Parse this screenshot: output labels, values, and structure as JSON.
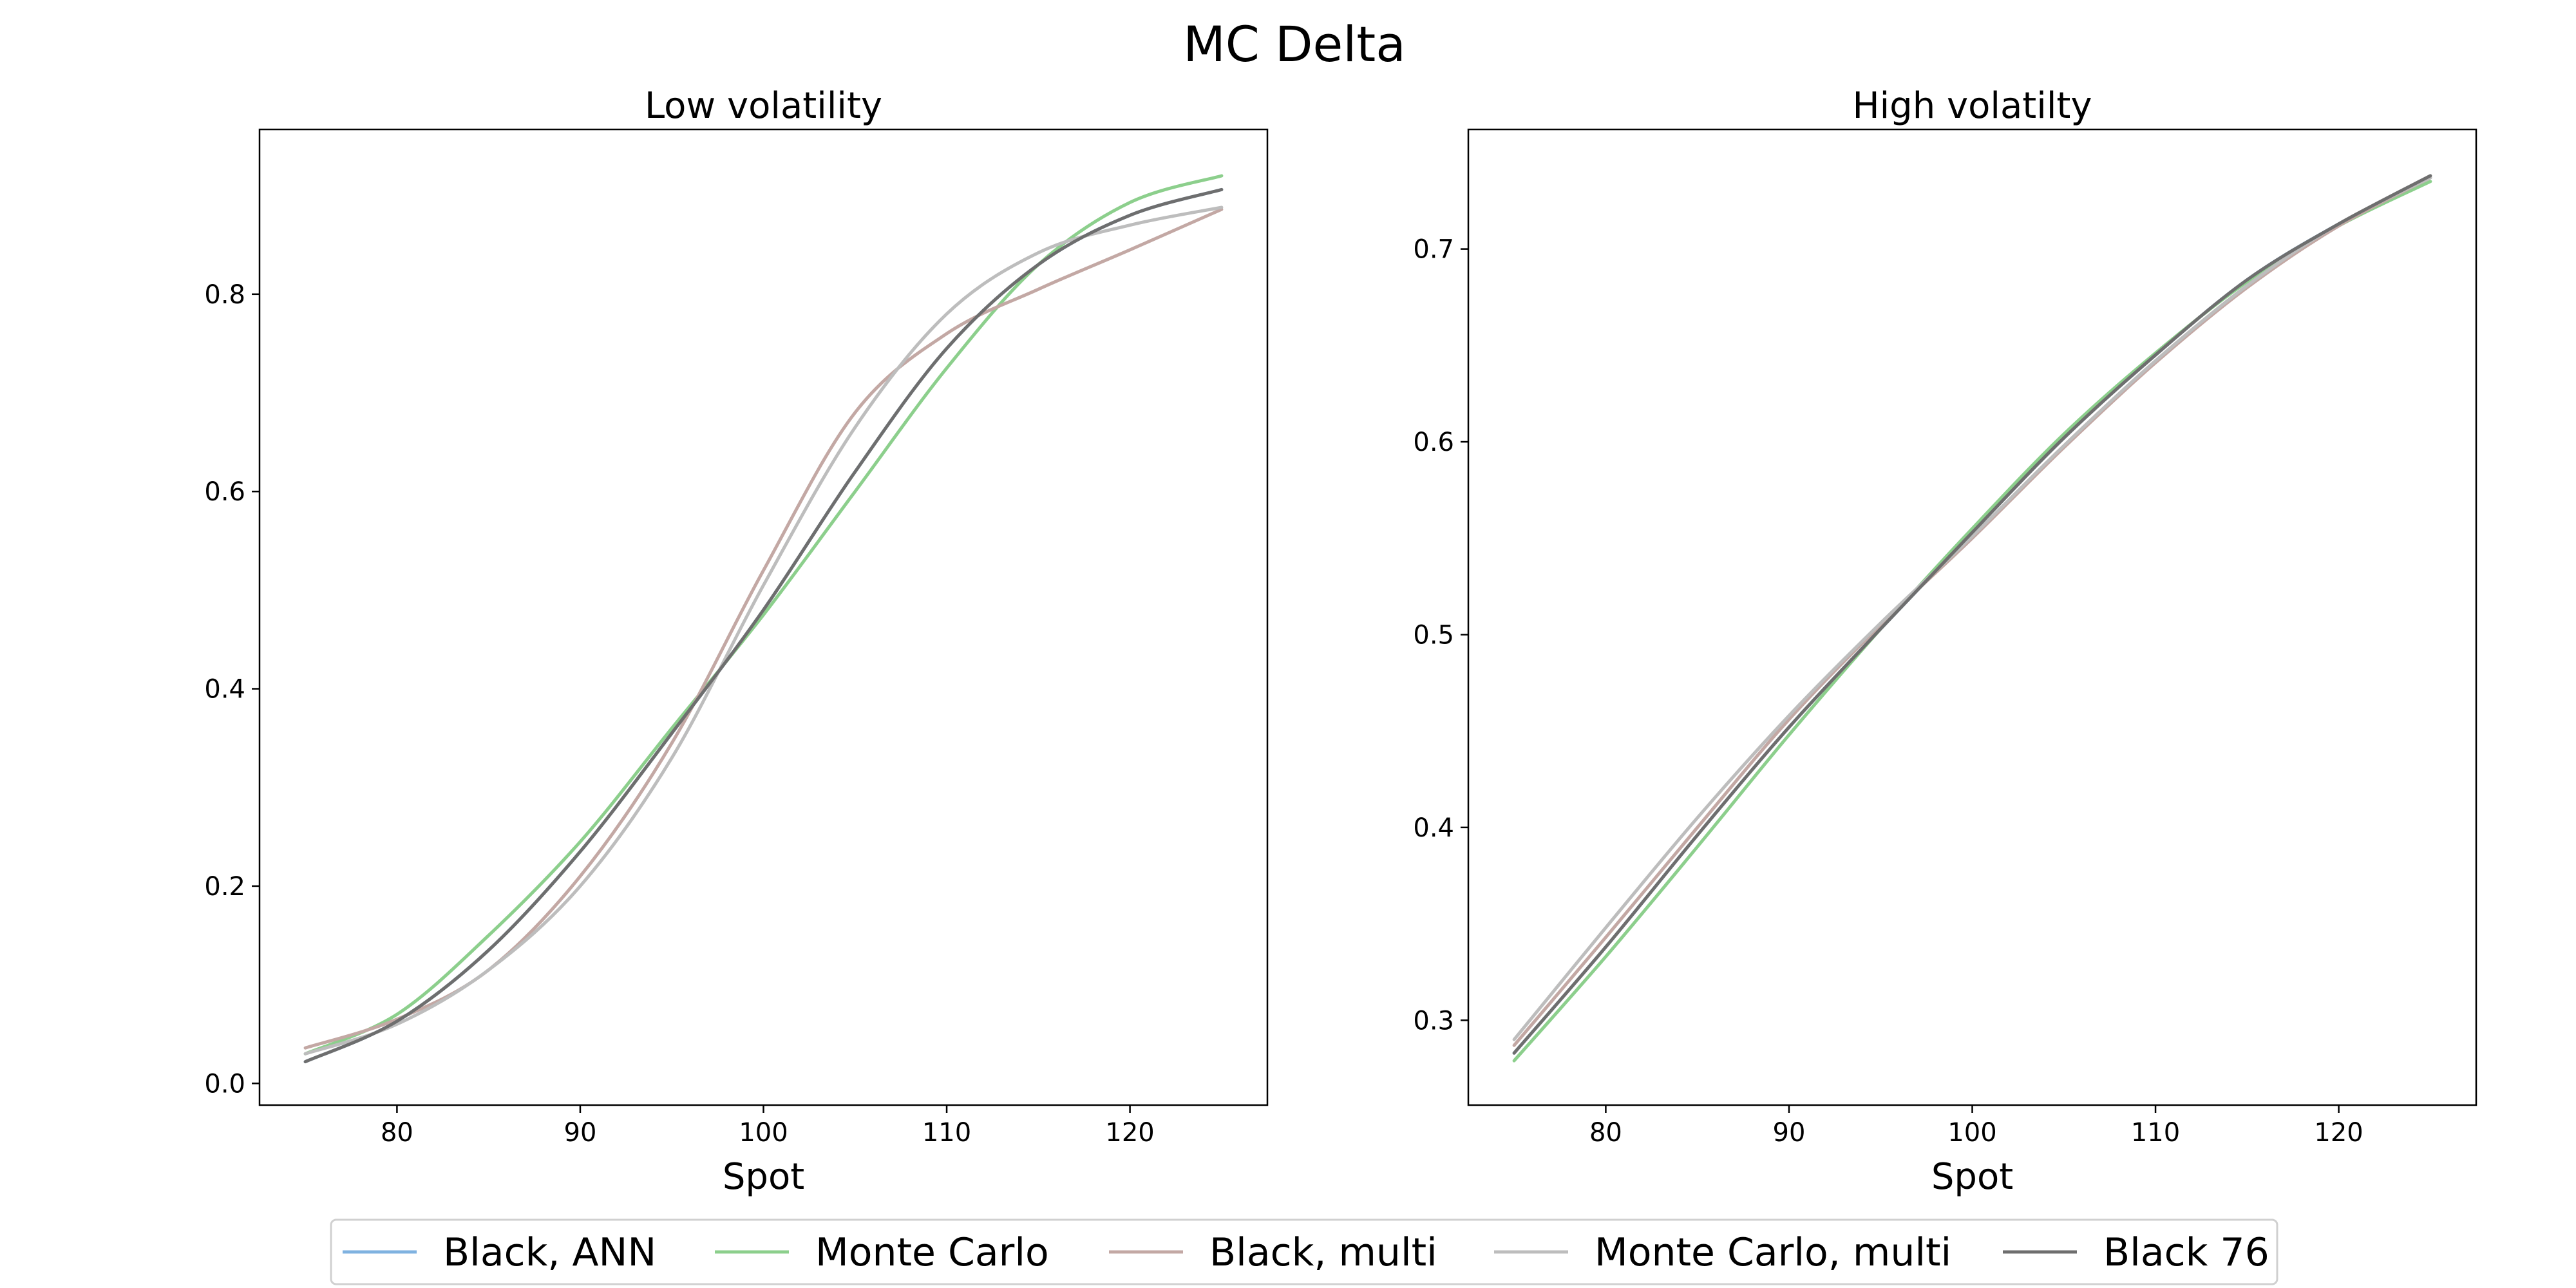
{
  "figure": {
    "title": "MC Delta"
  },
  "legend": {
    "placement": "bottom-center",
    "items": [
      {
        "name": "Black, ANN",
        "color": "#7fb2e0"
      },
      {
        "name": "Monte Carlo",
        "color": "#8ccf8c"
      },
      {
        "name": "Black, multi",
        "color": "#c3a8a4"
      },
      {
        "name": "Monte Carlo, multi",
        "color": "#bdbdbd"
      },
      {
        "name": "Black 76",
        "color": "#6e6e6e"
      }
    ]
  },
  "chart_data": [
    {
      "type": "line",
      "title": "Low volatility",
      "xlabel": "Spot",
      "ylabel": "",
      "xlim": [
        72.5,
        127.5
      ],
      "ylim": [
        -0.022,
        0.967
      ],
      "xticks": [
        80,
        90,
        100,
        110,
        120
      ],
      "yticks": [
        0.0,
        0.2,
        0.4,
        0.6,
        0.8
      ],
      "ytick_labels": [
        "0.0",
        "0.2",
        "0.4",
        "0.6",
        "0.8"
      ],
      "grid": false,
      "x": [
        75,
        80,
        85,
        90,
        95,
        100,
        105,
        110,
        115,
        120,
        125
      ],
      "series": [
        {
          "name": "Black, ANN",
          "color": "#7fb2e0",
          "values": [
            0.022,
            0.063,
            0.135,
            0.235,
            0.355,
            0.48,
            0.62,
            0.745,
            0.83,
            0.88,
            0.906
          ]
        },
        {
          "name": "Monte Carlo",
          "color": "#8ccf8c",
          "values": [
            0.03,
            0.07,
            0.15,
            0.245,
            0.36,
            0.475,
            0.6,
            0.725,
            0.83,
            0.893,
            0.92
          ]
        },
        {
          "name": "Black, multi",
          "color": "#c3a8a4",
          "values": [
            0.036,
            0.065,
            0.115,
            0.21,
            0.345,
            0.52,
            0.68,
            0.76,
            0.805,
            0.845,
            0.886
          ]
        },
        {
          "name": "Monte Carlo, multi",
          "color": "#bdbdbd",
          "values": [
            0.03,
            0.06,
            0.115,
            0.2,
            0.33,
            0.505,
            0.665,
            0.78,
            0.842,
            0.87,
            0.888
          ]
        },
        {
          "name": "Black 76",
          "color": "#6e6e6e",
          "values": [
            0.022,
            0.063,
            0.135,
            0.235,
            0.355,
            0.48,
            0.62,
            0.745,
            0.83,
            0.88,
            0.906
          ]
        }
      ]
    },
    {
      "type": "line",
      "title": "High volatilty",
      "xlabel": "Spot",
      "ylabel": "",
      "xlim": [
        72.5,
        127.5
      ],
      "ylim": [
        0.256,
        0.762
      ],
      "xticks": [
        80,
        90,
        100,
        110,
        120
      ],
      "yticks": [
        0.3,
        0.4,
        0.5,
        0.6,
        0.7
      ],
      "ytick_labels": [
        "0.3",
        "0.4",
        "0.5",
        "0.6",
        "0.7"
      ],
      "grid": false,
      "x": [
        75,
        80,
        85,
        90,
        95,
        100,
        105,
        110,
        115,
        120,
        125
      ],
      "series": [
        {
          "name": "Black, ANN",
          "color": "#7fb2e0",
          "values": [
            0.283,
            0.338,
            0.396,
            0.452,
            0.503,
            0.553,
            0.602,
            0.645,
            0.684,
            0.713,
            0.737
          ]
        },
        {
          "name": "Monte Carlo",
          "color": "#8ccf8c",
          "values": [
            0.279,
            0.333,
            0.39,
            0.448,
            0.503,
            0.555,
            0.604,
            0.646,
            0.683,
            0.712,
            0.735
          ]
        },
        {
          "name": "Black, multi",
          "color": "#c3a8a4",
          "values": [
            0.287,
            0.343,
            0.4,
            0.456,
            0.505,
            0.55,
            0.597,
            0.641,
            0.68,
            0.712,
            0.737
          ]
        },
        {
          "name": "Monte Carlo, multi",
          "color": "#bdbdbd",
          "values": [
            0.29,
            0.348,
            0.405,
            0.458,
            0.506,
            0.551,
            0.598,
            0.642,
            0.681,
            0.713,
            0.737
          ]
        },
        {
          "name": "Black 76",
          "color": "#6e6e6e",
          "values": [
            0.283,
            0.338,
            0.396,
            0.452,
            0.503,
            0.553,
            0.602,
            0.645,
            0.684,
            0.713,
            0.738
          ]
        }
      ]
    }
  ]
}
